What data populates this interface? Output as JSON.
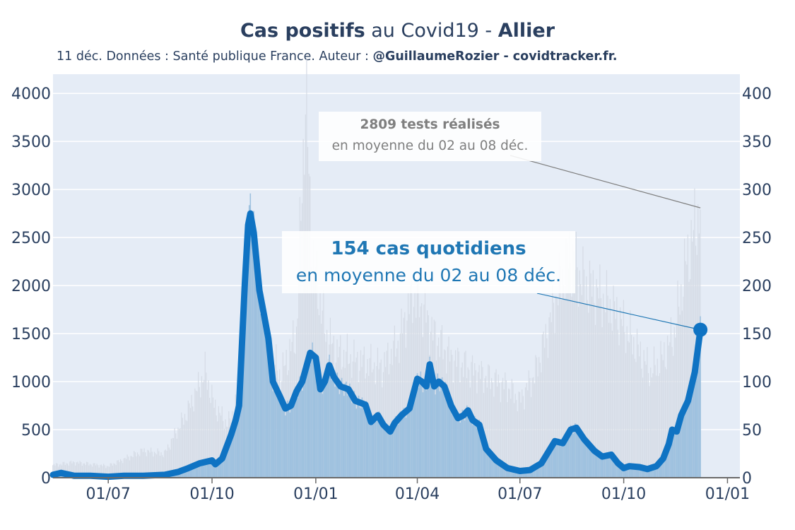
{
  "header": {
    "title_bold_1": "Cas positifs",
    "title_plain": " au Covid19 - ",
    "title_bold_2": "Allier",
    "subtitle_plain": "11 déc. Données : Santé publique France. Auteur : ",
    "subtitle_bold": "@GuillaumeRozier - covidtracker.fr."
  },
  "annotations": {
    "tests_line1": "2809 tests réalisés",
    "tests_line2": "en moyenne du 02 au 08 déc.",
    "cases_line1": "154 cas quotidiens",
    "cases_line2": "en moyenne du 02 au 08 déc."
  },
  "chart_data": {
    "type": "area",
    "colors": {
      "tests_bars": "#d5dbe5",
      "cases_bars": "#9ec1df",
      "cases_line": "#0f73c3",
      "plot_bg": "#e5ecf6",
      "grid": "#ffffff",
      "annotation_tests": "#7f7f7f",
      "annotation_cases": "#1f77b4"
    },
    "x_ticks": [
      "01/07",
      "01/10",
      "01/01",
      "01/04",
      "01/07",
      "01/10",
      "01/01"
    ],
    "y_left": {
      "ticks": [
        "0",
        "500",
        "1000",
        "1500",
        "2000",
        "2500",
        "3000",
        "3500",
        "4000"
      ],
      "range": [
        0,
        4200
      ]
    },
    "y_right": {
      "ticks": [
        "0",
        "50",
        "100",
        "150",
        "200",
        "250",
        "300",
        "350",
        "400"
      ],
      "range": [
        0,
        420
      ]
    },
    "grid": true,
    "x_start": "2020-05-13",
    "x_end": "2022-01-12",
    "series": [
      {
        "axis": "left",
        "points": [
          [
            "2020-05-13",
            130
          ],
          [
            "2020-06-01",
            160
          ],
          [
            "2020-07-01",
            120
          ],
          [
            "2020-08-01",
            280
          ],
          [
            "2020-08-20",
            250
          ],
          [
            "2020-09-10",
            700
          ],
          [
            "2020-09-25",
            1100
          ],
          [
            "2020-10-03",
            750
          ],
          [
            "2020-10-15",
            550
          ],
          [
            "2020-10-24",
            800
          ],
          [
            "2020-10-31",
            1500
          ],
          [
            "2020-11-08",
            1900
          ],
          [
            "2020-11-18",
            1400
          ],
          [
            "2020-12-01",
            1050
          ],
          [
            "2020-12-15",
            1500
          ],
          [
            "2020-12-23",
            4000
          ],
          [
            "2020-12-29",
            2300
          ],
          [
            "2021-01-10",
            1500
          ],
          [
            "2021-01-20",
            1300
          ],
          [
            "2021-02-10",
            1200
          ],
          [
            "2021-03-01",
            1150
          ],
          [
            "2021-03-15",
            1400
          ],
          [
            "2021-03-28",
            1900
          ],
          [
            "2021-04-05",
            1800
          ],
          [
            "2021-04-15",
            1500
          ],
          [
            "2021-05-01",
            1250
          ],
          [
            "2021-05-15",
            1150
          ],
          [
            "2021-06-01",
            1050
          ],
          [
            "2021-06-20",
            950
          ],
          [
            "2021-07-01",
            800
          ],
          [
            "2021-07-15",
            1100
          ],
          [
            "2021-07-25",
            1500
          ],
          [
            "2021-08-05",
            2000
          ],
          [
            "2021-08-15",
            2350
          ],
          [
            "2021-08-25",
            2050
          ],
          [
            "2021-09-10",
            1900
          ],
          [
            "2021-09-25",
            1700
          ],
          [
            "2021-10-10",
            1400
          ],
          [
            "2021-10-25",
            1100
          ],
          [
            "2021-11-05",
            1250
          ],
          [
            "2021-11-15",
            1500
          ],
          [
            "2021-11-25",
            2200
          ],
          [
            "2021-12-08",
            2809
          ]
        ]
      },
      {
        "axis": "right",
        "points": [
          [
            "2020-05-13",
            3
          ],
          [
            "2020-05-20",
            5
          ],
          [
            "2020-06-01",
            2
          ],
          [
            "2020-06-15",
            2
          ],
          [
            "2020-07-01",
            1
          ],
          [
            "2020-07-15",
            2
          ],
          [
            "2020-08-01",
            2
          ],
          [
            "2020-08-20",
            3
          ],
          [
            "2020-09-01",
            6
          ],
          [
            "2020-09-10",
            10
          ],
          [
            "2020-09-20",
            15
          ],
          [
            "2020-10-01",
            18
          ],
          [
            "2020-10-04",
            14
          ],
          [
            "2020-10-10",
            20
          ],
          [
            "2020-10-18",
            45
          ],
          [
            "2020-10-22",
            60
          ],
          [
            "2020-10-25",
            75
          ],
          [
            "2020-10-30",
            200
          ],
          [
            "2020-11-02",
            263
          ],
          [
            "2020-11-04",
            275
          ],
          [
            "2020-11-07",
            255
          ],
          [
            "2020-11-12",
            195
          ],
          [
            "2020-11-16",
            170
          ],
          [
            "2020-11-20",
            145
          ],
          [
            "2020-11-24",
            100
          ],
          [
            "2020-11-30",
            85
          ],
          [
            "2020-12-05",
            72
          ],
          [
            "2020-12-10",
            75
          ],
          [
            "2020-12-15",
            90
          ],
          [
            "2020-12-20",
            100
          ],
          [
            "2020-12-27",
            130
          ],
          [
            "2021-01-01",
            125
          ],
          [
            "2021-01-05",
            92
          ],
          [
            "2021-01-09",
            100
          ],
          [
            "2021-01-13",
            117
          ],
          [
            "2021-01-17",
            105
          ],
          [
            "2021-01-23",
            95
          ],
          [
            "2021-01-30",
            92
          ],
          [
            "2021-02-05",
            80
          ],
          [
            "2021-02-14",
            76
          ],
          [
            "2021-02-19",
            58
          ],
          [
            "2021-02-25",
            65
          ],
          [
            "2021-03-02",
            55
          ],
          [
            "2021-03-08",
            48
          ],
          [
            "2021-03-12",
            57
          ],
          [
            "2021-03-18",
            65
          ],
          [
            "2021-03-25",
            72
          ],
          [
            "2021-04-01",
            103
          ],
          [
            "2021-04-05",
            100
          ],
          [
            "2021-04-09",
            95
          ],
          [
            "2021-04-12",
            118
          ],
          [
            "2021-04-16",
            95
          ],
          [
            "2021-04-20",
            100
          ],
          [
            "2021-04-25",
            95
          ],
          [
            "2021-05-01",
            75
          ],
          [
            "2021-05-07",
            62
          ],
          [
            "2021-05-12",
            65
          ],
          [
            "2021-05-16",
            70
          ],
          [
            "2021-05-20",
            60
          ],
          [
            "2021-05-26",
            55
          ],
          [
            "2021-06-01",
            30
          ],
          [
            "2021-06-10",
            18
          ],
          [
            "2021-06-20",
            10
          ],
          [
            "2021-07-01",
            7
          ],
          [
            "2021-07-10",
            8
          ],
          [
            "2021-07-20",
            15
          ],
          [
            "2021-08-01",
            38
          ],
          [
            "2021-08-08",
            36
          ],
          [
            "2021-08-15",
            50
          ],
          [
            "2021-08-20",
            52
          ],
          [
            "2021-08-27",
            40
          ],
          [
            "2021-09-05",
            28
          ],
          [
            "2021-09-12",
            22
          ],
          [
            "2021-09-20",
            24
          ],
          [
            "2021-09-26",
            15
          ],
          [
            "2021-10-01",
            10
          ],
          [
            "2021-10-06",
            12
          ],
          [
            "2021-10-15",
            11
          ],
          [
            "2021-10-22",
            9
          ],
          [
            "2021-10-30",
            12
          ],
          [
            "2021-11-05",
            20
          ],
          [
            "2021-11-10",
            35
          ],
          [
            "2021-11-13",
            50
          ],
          [
            "2021-11-17",
            48
          ],
          [
            "2021-11-21",
            65
          ],
          [
            "2021-11-27",
            80
          ],
          [
            "2021-12-03",
            110
          ],
          [
            "2021-12-08",
            154
          ]
        ]
      }
    ]
  }
}
